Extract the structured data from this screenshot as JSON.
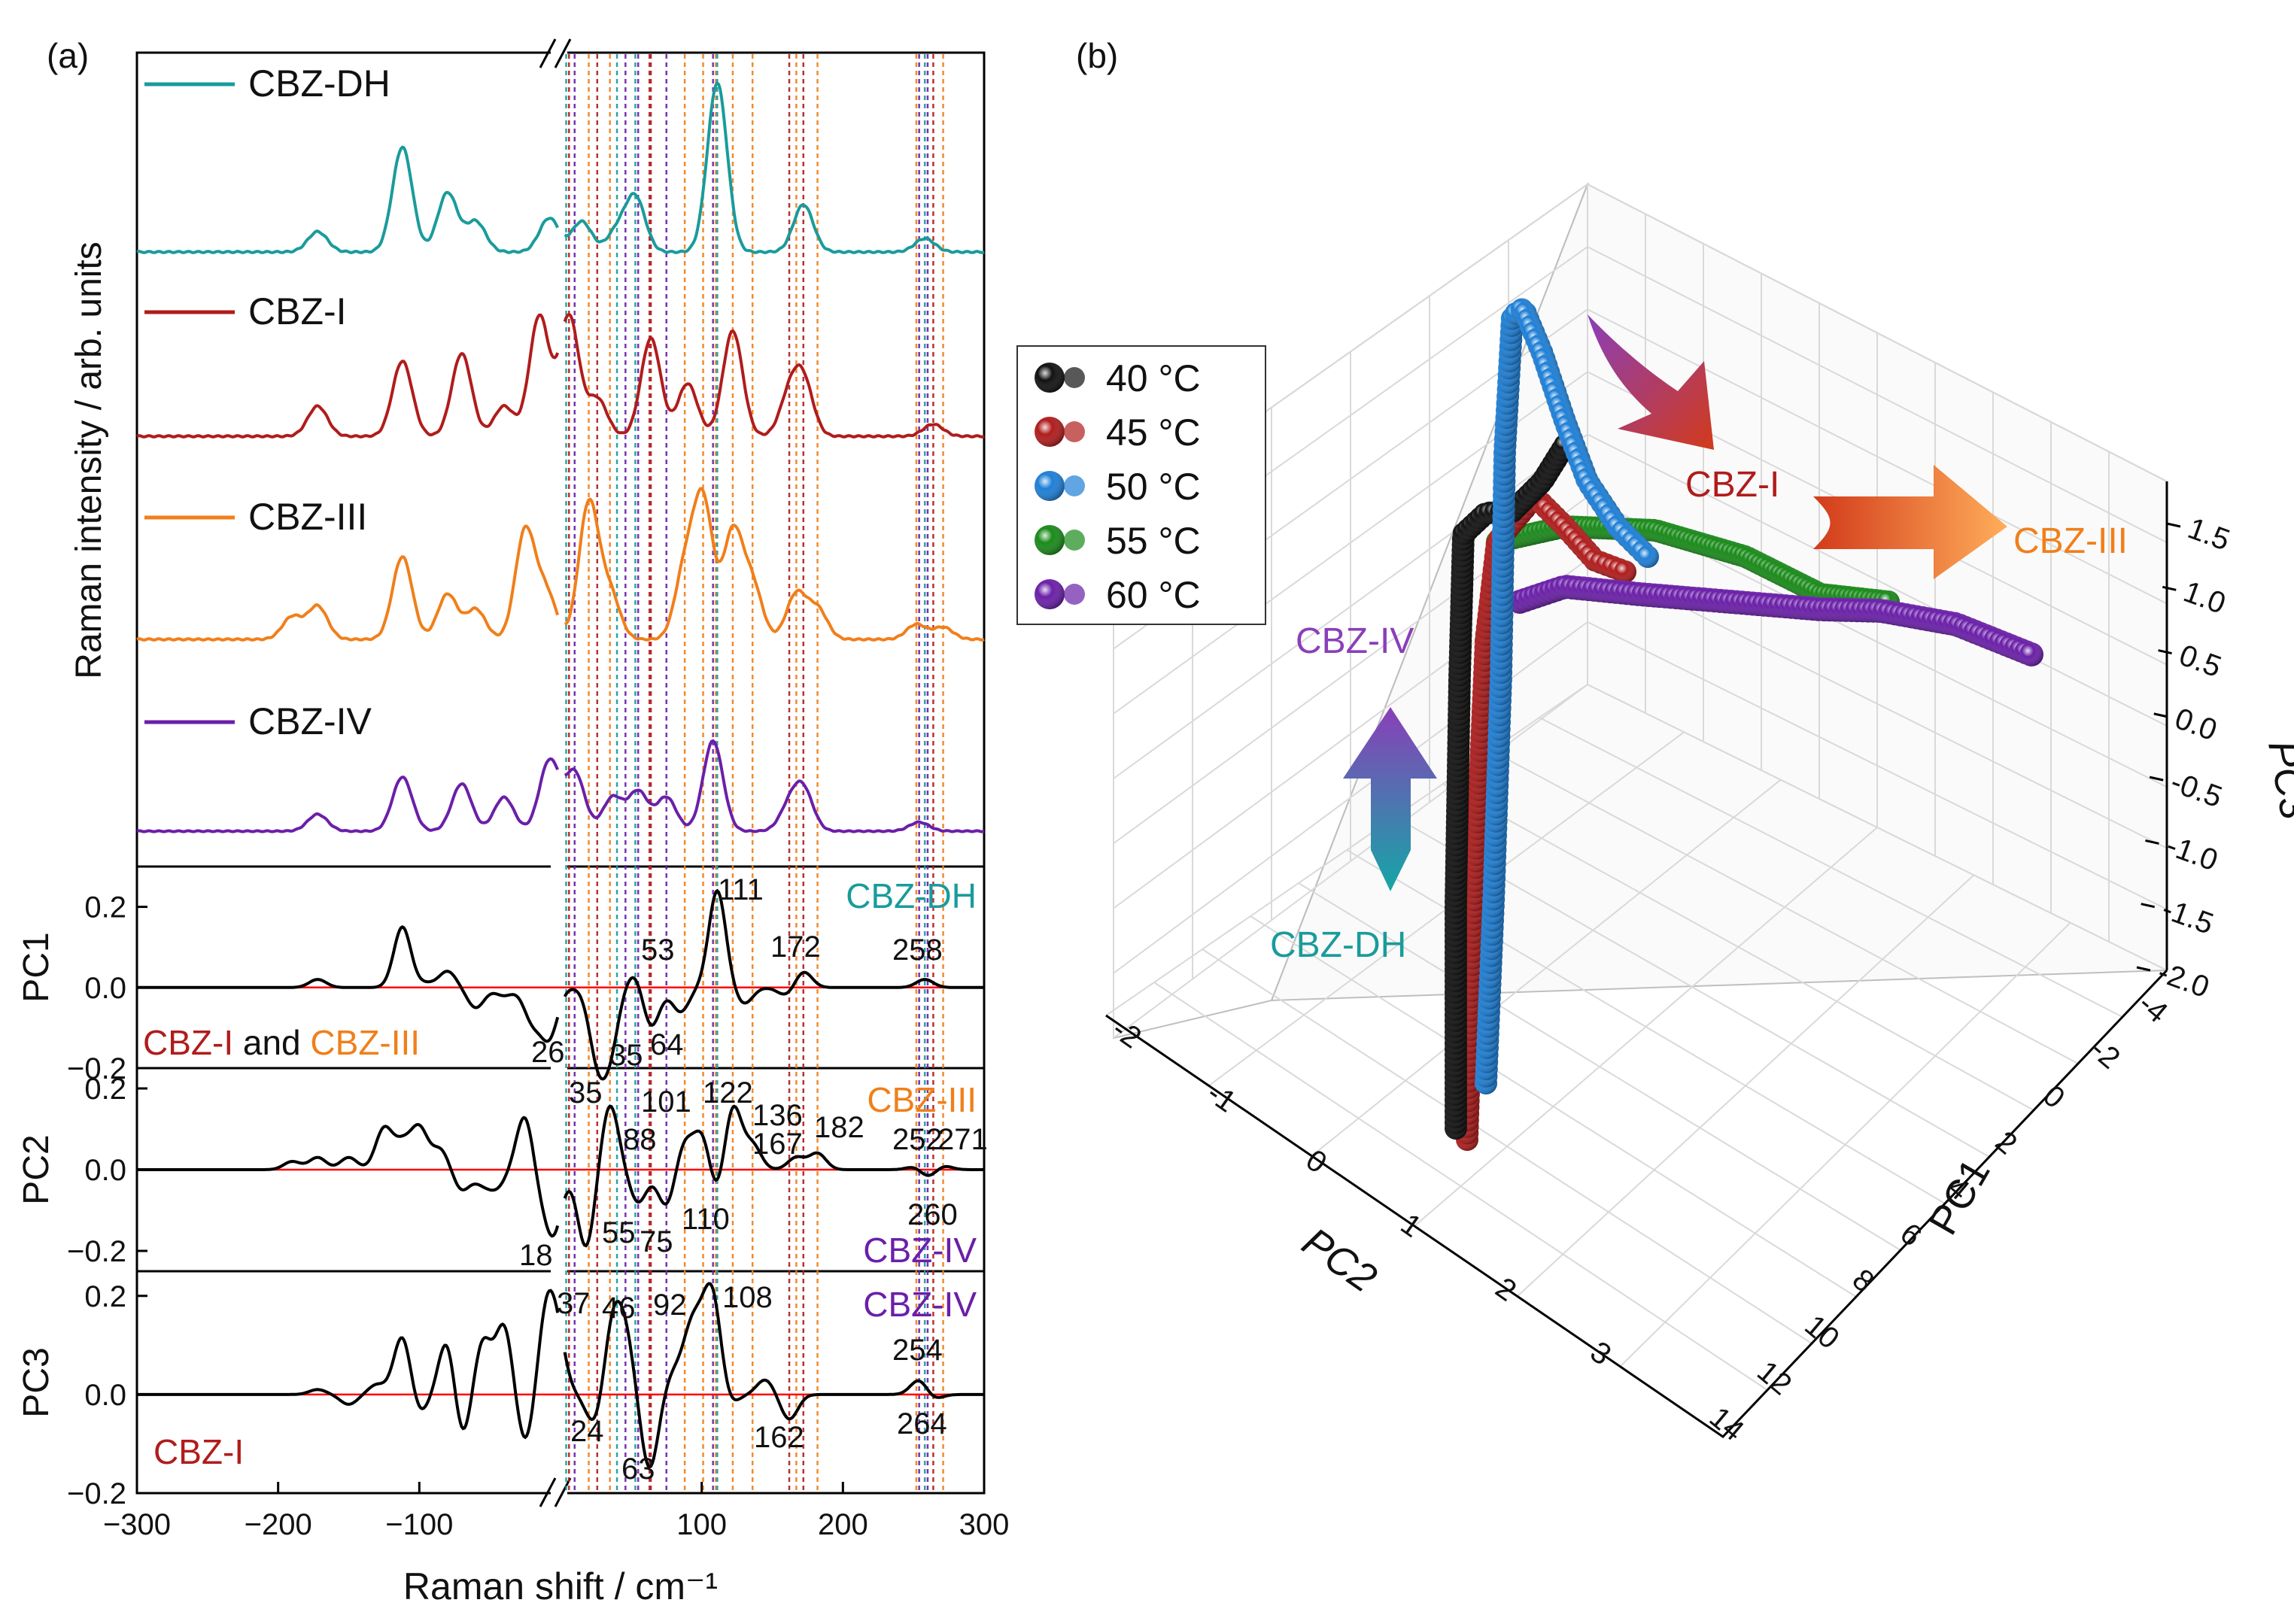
{
  "panel_labels": {
    "a": "(a)",
    "b": "(b)"
  },
  "colors": {
    "CBZ-DH": "#1a9b9b",
    "CBZ-I": "#b01c1c",
    "CBZ-III": "#f07f1a",
    "CBZ-IV": "#6a1fa8",
    "pc_line": "#000000",
    "zero_line": "#ff0000",
    "temp_40": "#111111",
    "temp_45": "#b01c1c",
    "temp_50": "#1e7fd6",
    "temp_55": "#1a8a1a",
    "temp_60": "#6a1fa8"
  },
  "chart_data": [
    {
      "type": "line",
      "panel": "(a)",
      "xlabel": "Raman shift / cm⁻¹",
      "ylabel_spectra": "Raman intensity / arb. units",
      "xlim": [
        -300,
        300
      ],
      "axis_break": "near 0 cm⁻¹",
      "x_ticks": [
        "−300",
        "−200",
        "−100",
        "100",
        "200",
        "300"
      ],
      "legend": [
        "CBZ-DH",
        "CBZ-I",
        "CBZ-III",
        "CBZ-IV"
      ],
      "spectra_peaks": [
        {
          "name": "CBZ-DH",
          "peaks": [
            [
              -172,
              0.12
            ],
            [
              -112,
              0.62
            ],
            [
              -80,
              0.35
            ],
            [
              -60,
              0.18
            ],
            [
              -8,
              0.2
            ],
            [
              15,
              0.18
            ],
            [
              40,
              0.12
            ],
            [
              53,
              0.32
            ],
            [
              111,
              1.0
            ],
            [
              172,
              0.28
            ],
            [
              258,
              0.08
            ]
          ]
        },
        {
          "name": "CBZ-I",
          "peaks": [
            [
              -172,
              0.2
            ],
            [
              -112,
              0.5
            ],
            [
              -70,
              0.55
            ],
            [
              -40,
              0.2
            ],
            [
              -15,
              0.8
            ],
            [
              6,
              0.8
            ],
            [
              26,
              0.25
            ],
            [
              64,
              0.65
            ],
            [
              90,
              0.35
            ],
            [
              122,
              0.7
            ],
            [
              162,
              0.25
            ],
            [
              172,
              0.35
            ],
            [
              264,
              0.08
            ]
          ]
        },
        {
          "name": "CBZ-III",
          "peaks": [
            [
              -190,
              0.15
            ],
            [
              -172,
              0.22
            ],
            [
              -112,
              0.55
            ],
            [
              -80,
              0.3
            ],
            [
              -60,
              0.2
            ],
            [
              -25,
              0.72
            ],
            [
              -10,
              0.3
            ],
            [
              20,
              0.9
            ],
            [
              35,
              0.3
            ],
            [
              88,
              0.45
            ],
            [
              101,
              0.9
            ],
            [
              122,
              0.7
            ],
            [
              136,
              0.35
            ],
            [
              167,
              0.3
            ],
            [
              182,
              0.2
            ],
            [
              252,
              0.1
            ],
            [
              271,
              0.08
            ]
          ]
        },
        {
          "name": "CBZ-IV",
          "peaks": [
            [
              -172,
              0.15
            ],
            [
              -112,
              0.48
            ],
            [
              -70,
              0.42
            ],
            [
              -40,
              0.3
            ],
            [
              -8,
              0.62
            ],
            [
              10,
              0.52
            ],
            [
              37,
              0.3
            ],
            [
              55,
              0.35
            ],
            [
              75,
              0.3
            ],
            [
              108,
              0.8
            ],
            [
              162,
              0.2
            ],
            [
              172,
              0.35
            ],
            [
              254,
              0.08
            ]
          ]
        }
      ],
      "pc_panels": [
        {
          "name": "PC1",
          "ylim": [
            -0.2,
            0.3
          ],
          "y_ticks": [
            "0.2",
            "0.0",
            "−0.2"
          ],
          "label_left": [
            {
              "text": "CBZ-I",
              "color": "CBZ-I"
            },
            {
              "text": " and ",
              "color": "pc_line"
            },
            {
              "text": "CBZ-III",
              "color": "CBZ-III"
            }
          ],
          "label_right": {
            "text": "CBZ-DH",
            "color": "CBZ-DH"
          },
          "features": [
            [
              -172,
              0.02
            ],
            [
              -112,
              0.15
            ],
            [
              -95,
              0.01
            ],
            [
              -80,
              0.04
            ],
            [
              -60,
              -0.05
            ],
            [
              -40,
              -0.02
            ],
            [
              -20,
              -0.08
            ],
            [
              -8,
              -0.12
            ],
            [
              26,
              -0.16
            ],
            [
              35,
              -0.14
            ],
            [
              53,
              0.04
            ],
            [
              64,
              -0.1
            ],
            [
              85,
              -0.06
            ],
            [
              111,
              0.24
            ],
            [
              130,
              -0.04
            ],
            [
              160,
              -0.02
            ],
            [
              172,
              0.04
            ],
            [
              258,
              0.02
            ]
          ],
          "peak_labels": [
            "111",
            "53",
            "172",
            "258",
            "26",
            "35",
            "64"
          ]
        },
        {
          "name": "PC2",
          "ylim": [
            -0.25,
            0.25
          ],
          "y_ticks": [
            "0.2",
            "0.0",
            "−0.2"
          ],
          "label_right_top": {
            "text": "CBZ-III",
            "color": "CBZ-III"
          },
          "label_right_bottom": {
            "text": "CBZ-IV",
            "color": "CBZ-IV"
          },
          "features": [
            [
              -190,
              0.02
            ],
            [
              -172,
              0.03
            ],
            [
              -150,
              0.03
            ],
            [
              -125,
              0.1
            ],
            [
              -112,
              0.06
            ],
            [
              -100,
              0.1
            ],
            [
              -85,
              0.05
            ],
            [
              -70,
              -0.05
            ],
            [
              -55,
              -0.03
            ],
            [
              -45,
              -0.04
            ],
            [
              -25,
              0.14
            ],
            [
              -15,
              -0.05
            ],
            [
              -5,
              -0.15
            ],
            [
              18,
              -0.19
            ],
            [
              35,
              0.16
            ],
            [
              55,
              -0.08
            ],
            [
              75,
              -0.09
            ],
            [
              88,
              0.07
            ],
            [
              101,
              0.1
            ],
            [
              110,
              -0.08
            ],
            [
              122,
              0.16
            ],
            [
              136,
              0.06
            ],
            [
              167,
              0.03
            ],
            [
              182,
              0.04
            ],
            [
              252,
              0.01
            ],
            [
              260,
              -0.02
            ],
            [
              271,
              0.01
            ]
          ],
          "peak_labels": [
            "35",
            "101",
            "122",
            "88",
            "136",
            "167",
            "182",
            "252",
            "271",
            "110",
            "260",
            "55",
            "75",
            "18"
          ]
        },
        {
          "name": "PC3",
          "ylim": [
            -0.2,
            0.25
          ],
          "y_ticks": [
            "0.2",
            "0.0",
            "−0.2"
          ],
          "label_left": [
            {
              "text": "CBZ-I",
              "color": "CBZ-I"
            }
          ],
          "label_right": {
            "text": "CBZ-IV",
            "color": "CBZ-IV"
          },
          "features": [
            [
              -172,
              0.01
            ],
            [
              -150,
              -0.02
            ],
            [
              -130,
              0.02
            ],
            [
              -112,
              0.12
            ],
            [
              -100,
              -0.04
            ],
            [
              -80,
              0.12
            ],
            [
              -70,
              -0.1
            ],
            [
              -55,
              0.11
            ],
            [
              -40,
              0.14
            ],
            [
              -25,
              -0.1
            ],
            [
              -10,
              0.16
            ],
            [
              -2,
              0.1
            ],
            [
              24,
              -0.06
            ],
            [
              37,
              0.14
            ],
            [
              46,
              0.11
            ],
            [
              63,
              -0.15
            ],
            [
              80,
              0.04
            ],
            [
              92,
              0.11
            ],
            [
              100,
              0.08
            ],
            [
              108,
              0.18
            ],
            [
              120,
              -0.02
            ],
            [
              145,
              0.03
            ],
            [
              162,
              -0.05
            ],
            [
              254,
              0.03
            ],
            [
              264,
              -0.01
            ]
          ],
          "peak_labels": [
            "37",
            "46",
            "92",
            "108",
            "254",
            "24",
            "63",
            "162",
            "264"
          ]
        }
      ]
    },
    {
      "type": "scatter",
      "panel": "(b)",
      "xlabel": "PC2",
      "ylabel": "PC1",
      "zlabel": "PC3",
      "pc2_ticks": [
        "-2",
        "-1",
        "0",
        "1",
        "2",
        "3"
      ],
      "pc1_ticks": [
        "-4",
        "-2",
        "0",
        "2",
        "4",
        "6",
        "8",
        "10",
        "12",
        "14"
      ],
      "pc3_ticks": [
        "1.5",
        "1.0",
        "0.5",
        "0.0",
        "-0.5",
        "-1.0",
        "-1.5",
        "-2.0"
      ],
      "legend": [
        "40 °C",
        "45 °C",
        "50 °C",
        "55 °C",
        "60 °C"
      ],
      "annotations": [
        "CBZ-I",
        "CBZ-III",
        "CBZ-IV",
        "CBZ-DH"
      ]
    }
  ]
}
